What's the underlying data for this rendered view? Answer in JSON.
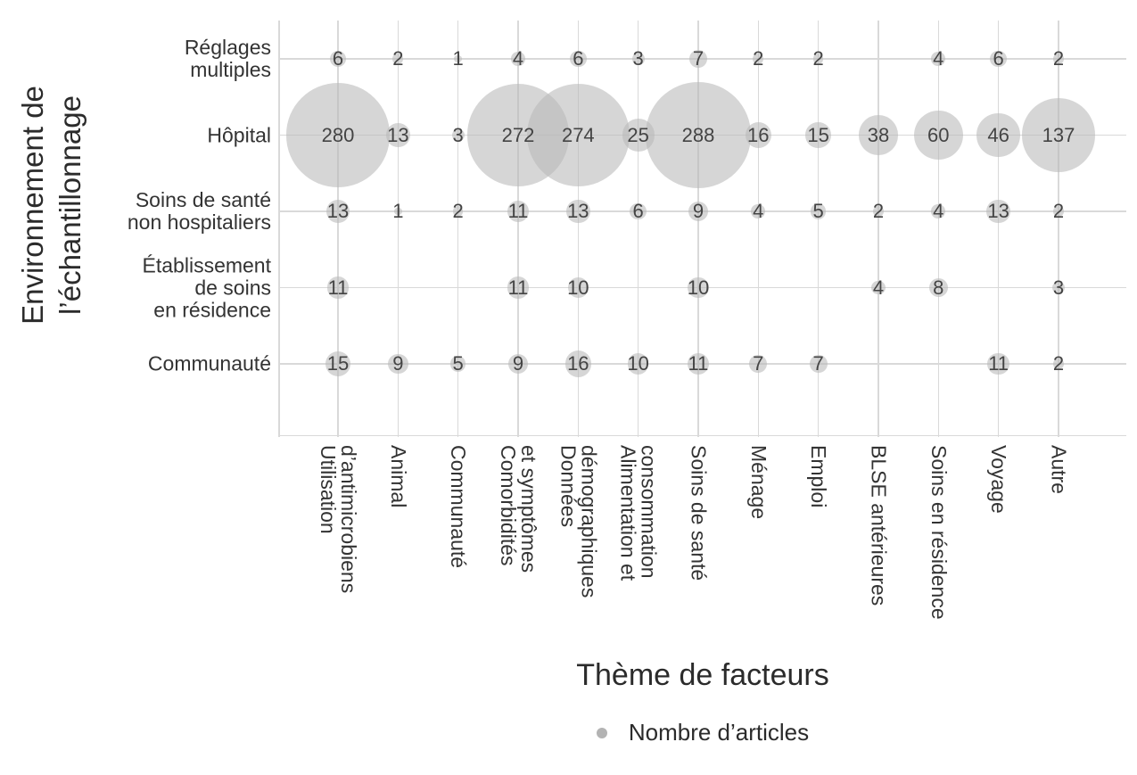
{
  "chart_data": {
    "type": "scatter",
    "subtype": "bubble",
    "title": "",
    "xlabel": "Thème de facteurs",
    "ylabel": "Environnement de\nl’échantillonnage",
    "legend_entries": [
      "Nombre d’articles"
    ],
    "legend_position": "bottom",
    "grid": true,
    "size_encoding": "bubble area ~ number of articles",
    "x_categories": [
      "Utilisation\nd’antimicrobiens",
      "Animal",
      "Communauté",
      "Comorbidités\net symptômes",
      "Données\ndémographiques",
      "Alimentation et\nconsommation",
      "Soins de santé",
      "Ménage",
      "Emploi",
      "BLSE antérieures",
      "Soins en résidence",
      "Voyage",
      "Autre"
    ],
    "y_categories": [
      "Réglages\nmultiples",
      "Hôpital",
      "Soins de santé\nnon hospitaliers",
      "Établissement\nde soins\nen résidence",
      "Communauté"
    ],
    "values": [
      [
        6,
        2,
        1,
        4,
        6,
        3,
        7,
        2,
        2,
        null,
        4,
        6,
        2
      ],
      [
        280,
        13,
        3,
        272,
        274,
        25,
        288,
        16,
        15,
        38,
        60,
        46,
        137
      ],
      [
        13,
        1,
        2,
        11,
        13,
        6,
        9,
        4,
        5,
        2,
        4,
        13,
        2
      ],
      [
        11,
        null,
        null,
        11,
        10,
        null,
        10,
        null,
        null,
        4,
        8,
        null,
        3
      ],
      [
        15,
        9,
        5,
        9,
        16,
        10,
        11,
        7,
        7,
        null,
        null,
        11,
        2
      ]
    ],
    "value_range": [
      1,
      288
    ],
    "colors": {
      "background": "#ffffff",
      "bubble_fill": "rgba(185,185,185,0.58)",
      "gridline": "#d9d9d9",
      "tick_text": "#333333",
      "value_text": "#444444",
      "title_text": "#2b2b2b",
      "legend_dot": "#b3b3b3"
    }
  }
}
